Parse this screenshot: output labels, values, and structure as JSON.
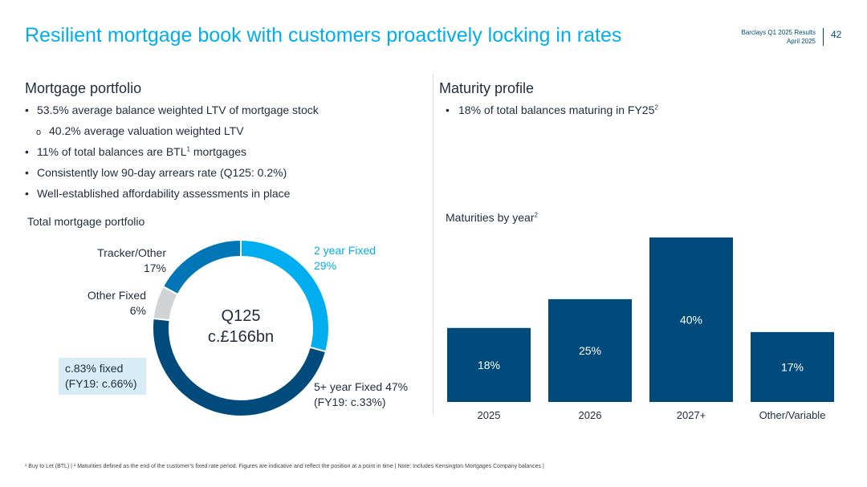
{
  "header": {
    "title": "Resilient mortgage book with customers proactively locking in rates",
    "doc_name": "Barclays Q1 2025 Results",
    "doc_date": "April 2025",
    "page_number": "42"
  },
  "left": {
    "section_title": "Mortgage portfolio",
    "bullets": [
      {
        "text": "53.5% average balance weighted LTV of mortgage stock",
        "sup": ""
      },
      {
        "text": "40.2% average valuation weighted LTV",
        "sup": ""
      },
      {
        "text": "11% of total balances are BTL",
        "sup": "1",
        "after": " mortgages"
      },
      {
        "text": "Consistently low 90-day arrears rate (Q125: 0.2%)",
        "sup": ""
      },
      {
        "text": "Well-established affordability assessments in place",
        "sup": ""
      }
    ],
    "chart_title": "Total mortgage portfolio",
    "center_line1": "Q125",
    "center_line2": "c.£166bn",
    "fixed_box_line1": "c.83% fixed",
    "fixed_box_line2": "(FY19: c.66%)",
    "labels": {
      "two_year": "2 year Fixed",
      "two_year_pct": "29%",
      "five_year": "5+ year Fixed 47%",
      "five_year_note": "(FY19: c.33%)",
      "other_fixed": "Other Fixed",
      "other_fixed_pct": "6%",
      "tracker": "Tracker/Other",
      "tracker_pct": "17%"
    }
  },
  "right": {
    "section_title": "Maturity profile",
    "bullet": "18% of total balances maturing in FY25",
    "bullet_sup": "2",
    "chart_title": "Maturities by year",
    "chart_title_sup": "2"
  },
  "footnote": "¹ Buy to Let (BTL) | ² Maturities defined as the end of the customer’s fixed rate period. Figures are indicative and reflect the position at a point in time | Note: Includes Kensington Mortgages Company balances |",
  "colors": {
    "accent": "#00aeef",
    "navy": "#004b7c",
    "mid_blue": "#0076b6",
    "grey": "#d0d3d6",
    "light_box": "#d7ecf7"
  },
  "chart_data": [
    {
      "type": "pie",
      "title": "Total mortgage portfolio",
      "categories": [
        "2 year Fixed",
        "5+ year Fixed",
        "Other Fixed",
        "Tracker/Other"
      ],
      "values": [
        29,
        47,
        6,
        17
      ],
      "center_text": "Q125 c.£166bn"
    },
    {
      "type": "bar",
      "title": "Maturities by year",
      "categories": [
        "2025",
        "2026",
        "2027+",
        "Other/Variable"
      ],
      "values": [
        18,
        25,
        40,
        17
      ],
      "value_labels": [
        "18%",
        "25%",
        "40%",
        "17%"
      ],
      "ylim": [
        0,
        40
      ]
    }
  ]
}
